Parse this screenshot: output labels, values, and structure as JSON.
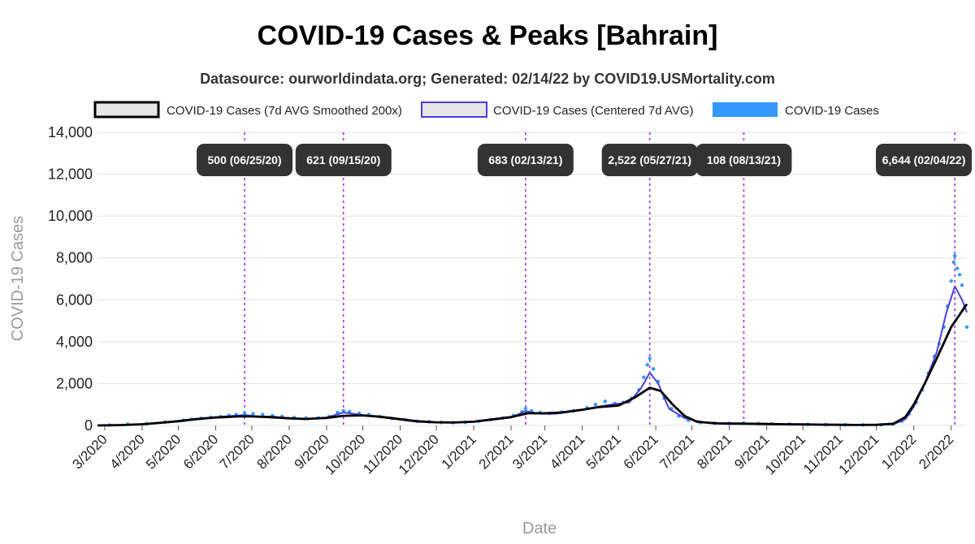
{
  "chart_data": {
    "type": "line",
    "title": "COVID-19 Cases & Peaks [Bahrain]",
    "subtitle": "Datasource: ourworldindata.org; Generated: 02/14/22 by COVID19.USMortality.com",
    "xlabel": "Date",
    "ylabel": "COVID-19 Cases",
    "ylim": [
      0,
      14000
    ],
    "yticks": [
      "0",
      "2,000",
      "4,000",
      "6,000",
      "8,000",
      "10,000",
      "12,000",
      "14,000"
    ],
    "ytick_values": [
      0,
      2000,
      4000,
      6000,
      8000,
      10000,
      12000,
      14000
    ],
    "xlim": [
      "2020-02-24",
      "2022-02-14"
    ],
    "xticks": [
      "3/2020",
      "4/2020",
      "5/2020",
      "6/2020",
      "7/2020",
      "8/2020",
      "9/2020",
      "10/2020",
      "11/2020",
      "12/2020",
      "1/2021",
      "2/2021",
      "3/2021",
      "4/2021",
      "5/2021",
      "6/2021",
      "7/2021",
      "8/2021",
      "9/2021",
      "10/2021",
      "11/2021",
      "12/2021",
      "1/2022",
      "2/2022"
    ],
    "xtick_dates": [
      "2020-03-01",
      "2020-04-01",
      "2020-05-01",
      "2020-06-01",
      "2020-07-01",
      "2020-08-01",
      "2020-09-01",
      "2020-10-01",
      "2020-11-01",
      "2020-12-01",
      "2021-01-01",
      "2021-02-01",
      "2021-03-01",
      "2021-04-01",
      "2021-05-01",
      "2021-06-01",
      "2021-07-01",
      "2021-08-01",
      "2021-09-01",
      "2021-10-01",
      "2021-11-01",
      "2021-12-01",
      "2022-01-01",
      "2022-02-01"
    ],
    "grid": true,
    "legend_position": "top",
    "series": [
      {
        "name": "COVID-19 Cases (7d AVG Smoothed 200x)",
        "style": "line",
        "color": "#000000",
        "points": [
          [
            "2020-02-24",
            0
          ],
          [
            "2020-03-15",
            20
          ],
          [
            "2020-04-01",
            60
          ],
          [
            "2020-04-15",
            120
          ],
          [
            "2020-05-01",
            200
          ],
          [
            "2020-05-15",
            300
          ],
          [
            "2020-06-01",
            380
          ],
          [
            "2020-06-20",
            430
          ],
          [
            "2020-07-01",
            430
          ],
          [
            "2020-07-15",
            400
          ],
          [
            "2020-08-01",
            340
          ],
          [
            "2020-08-15",
            310
          ],
          [
            "2020-09-01",
            360
          ],
          [
            "2020-09-15",
            460
          ],
          [
            "2020-10-01",
            480
          ],
          [
            "2020-10-15",
            420
          ],
          [
            "2020-11-01",
            300
          ],
          [
            "2020-11-15",
            200
          ],
          [
            "2020-12-01",
            150
          ],
          [
            "2020-12-15",
            140
          ],
          [
            "2021-01-01",
            180
          ],
          [
            "2021-01-15",
            280
          ],
          [
            "2021-02-01",
            400
          ],
          [
            "2021-02-15",
            580
          ],
          [
            "2021-03-01",
            580
          ],
          [
            "2021-03-15",
            620
          ],
          [
            "2021-04-01",
            750
          ],
          [
            "2021-04-15",
            880
          ],
          [
            "2021-05-01",
            950
          ],
          [
            "2021-05-15",
            1350
          ],
          [
            "2021-05-27",
            1800
          ],
          [
            "2021-06-05",
            1650
          ],
          [
            "2021-06-15",
            1000
          ],
          [
            "2021-06-25",
            450
          ],
          [
            "2021-07-05",
            180
          ],
          [
            "2021-07-20",
            100
          ],
          [
            "2021-08-01",
            90
          ],
          [
            "2021-08-15",
            80
          ],
          [
            "2021-09-01",
            70
          ],
          [
            "2021-09-15",
            60
          ],
          [
            "2021-10-01",
            50
          ],
          [
            "2021-10-15",
            40
          ],
          [
            "2021-11-01",
            30
          ],
          [
            "2021-11-15",
            25
          ],
          [
            "2021-12-01",
            30
          ],
          [
            "2021-12-15",
            80
          ],
          [
            "2021-12-25",
            400
          ],
          [
            "2022-01-01",
            1000
          ],
          [
            "2022-01-10",
            2000
          ],
          [
            "2022-01-20",
            3200
          ],
          [
            "2022-02-01",
            4700
          ],
          [
            "2022-02-14",
            5800
          ]
        ]
      },
      {
        "name": "COVID-19 Cases (Centered 7d AVG)",
        "style": "line",
        "color": "#4a3fdb",
        "points": [
          [
            "2020-02-24",
            0
          ],
          [
            "2020-03-15",
            20
          ],
          [
            "2020-04-01",
            70
          ],
          [
            "2020-04-15",
            130
          ],
          [
            "2020-05-01",
            220
          ],
          [
            "2020-05-15",
            310
          ],
          [
            "2020-06-01",
            400
          ],
          [
            "2020-06-25",
            500
          ],
          [
            "2020-07-05",
            440
          ],
          [
            "2020-07-20",
            420
          ],
          [
            "2020-08-01",
            330
          ],
          [
            "2020-08-15",
            300
          ],
          [
            "2020-09-01",
            380
          ],
          [
            "2020-09-15",
            621
          ],
          [
            "2020-10-01",
            500
          ],
          [
            "2020-10-15",
            400
          ],
          [
            "2020-11-01",
            280
          ],
          [
            "2020-11-15",
            180
          ],
          [
            "2020-12-01",
            140
          ],
          [
            "2020-12-15",
            130
          ],
          [
            "2021-01-01",
            170
          ],
          [
            "2021-01-15",
            260
          ],
          [
            "2021-02-01",
            380
          ],
          [
            "2021-02-13",
            683
          ],
          [
            "2021-02-25",
            560
          ],
          [
            "2021-03-10",
            560
          ],
          [
            "2021-03-25",
            680
          ],
          [
            "2021-04-10",
            850
          ],
          [
            "2021-04-25",
            1000
          ],
          [
            "2021-05-10",
            1100
          ],
          [
            "2021-05-20",
            1800
          ],
          [
            "2021-05-27",
            2522
          ],
          [
            "2021-06-03",
            2000
          ],
          [
            "2021-06-12",
            800
          ],
          [
            "2021-06-25",
            350
          ],
          [
            "2021-07-10",
            150
          ],
          [
            "2021-07-25",
            110
          ],
          [
            "2021-08-13",
            108
          ],
          [
            "2021-09-01",
            80
          ],
          [
            "2021-09-15",
            60
          ],
          [
            "2021-10-01",
            45
          ],
          [
            "2021-10-15",
            40
          ],
          [
            "2021-11-01",
            30
          ],
          [
            "2021-11-15",
            25
          ],
          [
            "2021-12-01",
            30
          ],
          [
            "2021-12-15",
            60
          ],
          [
            "2021-12-25",
            300
          ],
          [
            "2022-01-01",
            900
          ],
          [
            "2022-01-10",
            2000
          ],
          [
            "2022-01-20",
            3500
          ],
          [
            "2022-01-28",
            5400
          ],
          [
            "2022-02-04",
            6644
          ],
          [
            "2022-02-10",
            6000
          ],
          [
            "2022-02-14",
            5400
          ]
        ]
      },
      {
        "name": "COVID-19 Cases",
        "style": "scatter",
        "color": "#3399ff",
        "points": [
          [
            "2020-03-05",
            10
          ],
          [
            "2020-03-20",
            60
          ],
          [
            "2020-04-05",
            80
          ],
          [
            "2020-04-20",
            160
          ],
          [
            "2020-05-05",
            250
          ],
          [
            "2020-05-12",
            300
          ],
          [
            "2020-05-20",
            340
          ],
          [
            "2020-05-28",
            390
          ],
          [
            "2020-06-05",
            420
          ],
          [
            "2020-06-12",
            480
          ],
          [
            "2020-06-18",
            520
          ],
          [
            "2020-06-25",
            600
          ],
          [
            "2020-07-02",
            560
          ],
          [
            "2020-07-10",
            520
          ],
          [
            "2020-07-18",
            470
          ],
          [
            "2020-07-26",
            430
          ],
          [
            "2020-08-05",
            380
          ],
          [
            "2020-08-15",
            350
          ],
          [
            "2020-08-25",
            360
          ],
          [
            "2020-09-03",
            420
          ],
          [
            "2020-09-10",
            620
          ],
          [
            "2020-09-15",
            700
          ],
          [
            "2020-09-20",
            660
          ],
          [
            "2020-09-28",
            580
          ],
          [
            "2020-10-06",
            520
          ],
          [
            "2020-10-15",
            420
          ],
          [
            "2020-10-25",
            340
          ],
          [
            "2020-11-05",
            280
          ],
          [
            "2020-11-15",
            200
          ],
          [
            "2020-11-25",
            170
          ],
          [
            "2020-12-05",
            150
          ],
          [
            "2020-12-15",
            140
          ],
          [
            "2020-12-25",
            150
          ],
          [
            "2021-01-05",
            200
          ],
          [
            "2021-01-15",
            280
          ],
          [
            "2021-01-25",
            350
          ],
          [
            "2021-02-03",
            480
          ],
          [
            "2021-02-10",
            650
          ],
          [
            "2021-02-13",
            800
          ],
          [
            "2021-02-18",
            700
          ],
          [
            "2021-02-25",
            620
          ],
          [
            "2021-03-05",
            580
          ],
          [
            "2021-03-15",
            640
          ],
          [
            "2021-03-25",
            700
          ],
          [
            "2021-04-05",
            850
          ],
          [
            "2021-04-12",
            1000
          ],
          [
            "2021-04-20",
            1150
          ],
          [
            "2021-04-28",
            1050
          ],
          [
            "2021-05-05",
            1100
          ],
          [
            "2021-05-12",
            1300
          ],
          [
            "2021-05-18",
            1700
          ],
          [
            "2021-05-22",
            2300
          ],
          [
            "2021-05-25",
            2900
          ],
          [
            "2021-05-27",
            3200
          ],
          [
            "2021-05-30",
            2700
          ],
          [
            "2021-06-03",
            2100
          ],
          [
            "2021-06-08",
            1300
          ],
          [
            "2021-06-14",
            800
          ],
          [
            "2021-06-20",
            450
          ],
          [
            "2021-06-28",
            250
          ],
          [
            "2021-07-08",
            140
          ],
          [
            "2021-07-20",
            110
          ],
          [
            "2021-08-01",
            100
          ],
          [
            "2021-08-13",
            120
          ],
          [
            "2021-08-25",
            95
          ],
          [
            "2021-09-05",
            80
          ],
          [
            "2021-09-20",
            65
          ],
          [
            "2021-10-05",
            50
          ],
          [
            "2021-10-20",
            40
          ],
          [
            "2021-11-05",
            30
          ],
          [
            "2021-11-20",
            25
          ],
          [
            "2021-12-05",
            30
          ],
          [
            "2021-12-15",
            60
          ],
          [
            "2021-12-22",
            200
          ],
          [
            "2021-12-28",
            550
          ],
          [
            "2022-01-03",
            1100
          ],
          [
            "2022-01-08",
            1700
          ],
          [
            "2022-01-13",
            2500
          ],
          [
            "2022-01-18",
            3300
          ],
          [
            "2022-01-22",
            3900
          ],
          [
            "2022-01-26",
            4700
          ],
          [
            "2022-01-29",
            5700
          ],
          [
            "2022-02-01",
            6900
          ],
          [
            "2022-02-03",
            7800
          ],
          [
            "2022-02-04",
            8100
          ],
          [
            "2022-02-06",
            7500
          ],
          [
            "2022-02-08",
            7200
          ],
          [
            "2022-02-10",
            6700
          ],
          [
            "2022-02-12",
            5600
          ],
          [
            "2022-02-14",
            4700
          ]
        ]
      }
    ],
    "peaks": [
      {
        "label": "500 (06/25/20)",
        "date": "2020-06-25"
      },
      {
        "label": "621 (09/15/20)",
        "date": "2020-09-15"
      },
      {
        "label": "683 (02/13/21)",
        "date": "2021-02-13"
      },
      {
        "label": "2,522 (05/27/21)",
        "date": "2021-05-27"
      },
      {
        "label": "108 (08/13/21)",
        "date": "2021-08-13"
      },
      {
        "label": "6,644 (02/04/22)",
        "date": "2022-02-04"
      }
    ],
    "peak_line_color": "#9b30ff",
    "peak_label_bg": "#333333"
  }
}
